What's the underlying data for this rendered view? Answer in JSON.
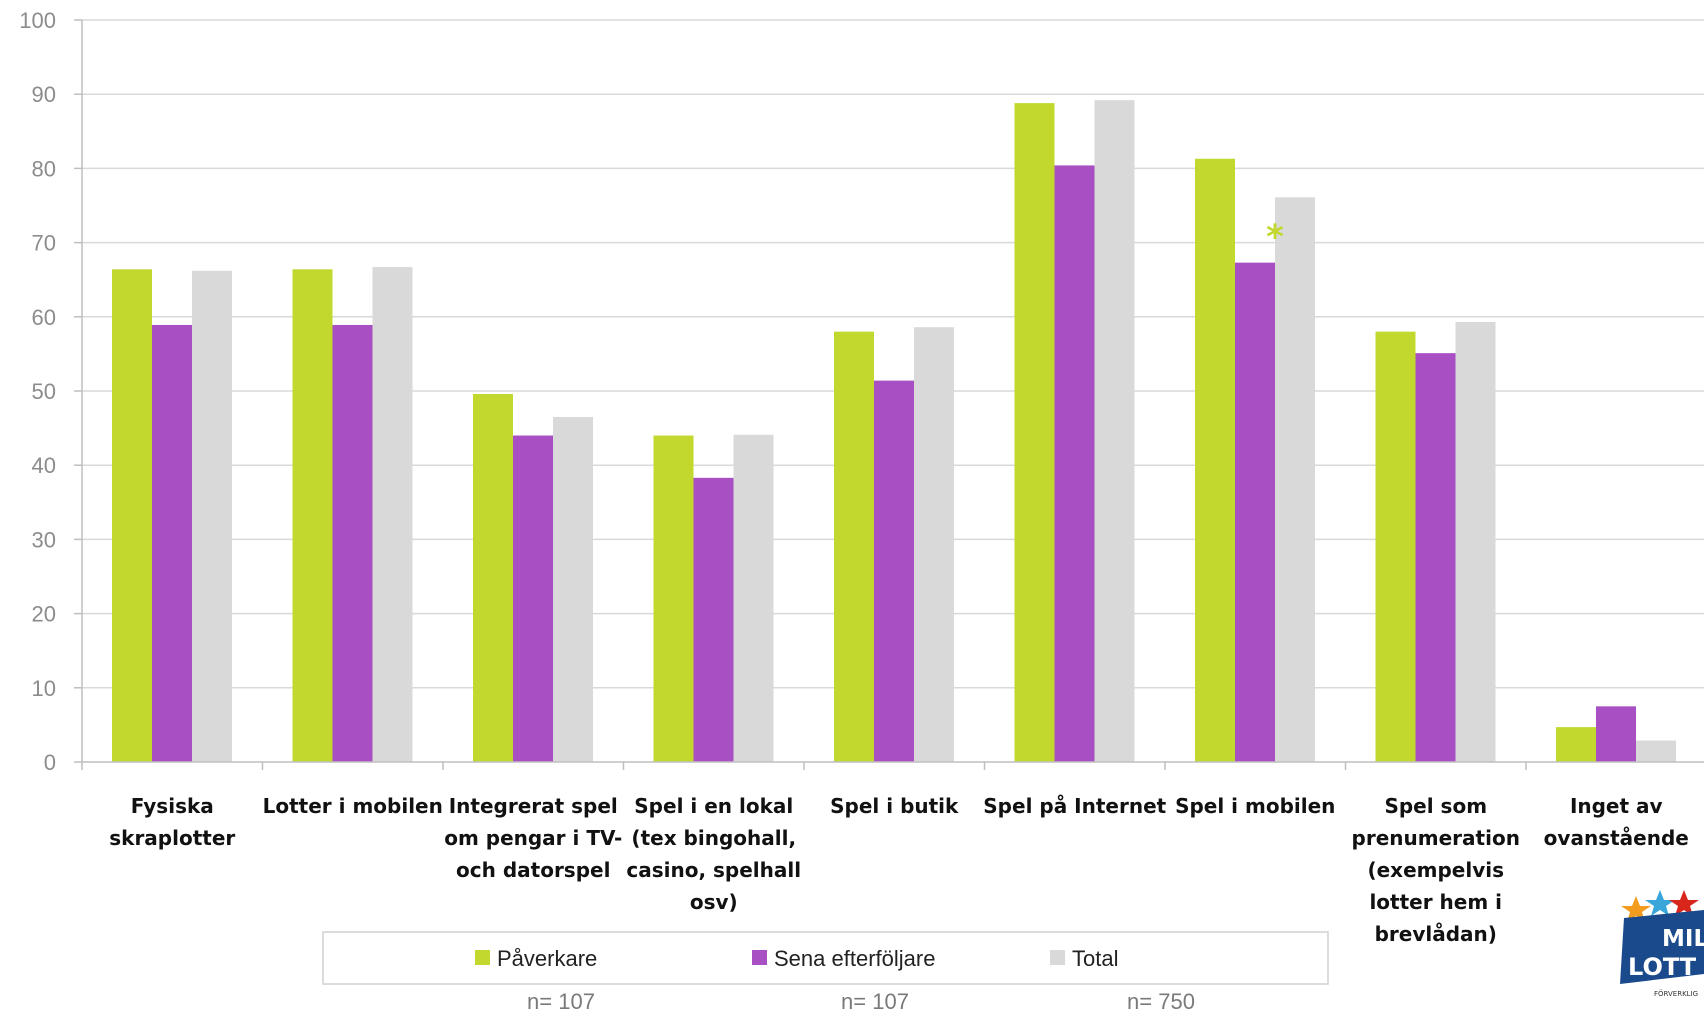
{
  "chart_data": {
    "type": "bar",
    "title": "",
    "xlabel": "",
    "ylabel": "",
    "ylim": [
      0,
      100
    ],
    "yticks": [
      0,
      10,
      20,
      30,
      40,
      50,
      60,
      70,
      80,
      90,
      100
    ],
    "grid": true,
    "legend_position": "bottom",
    "categories": [
      "Fysiska skraplotter",
      "Lotter i mobilen",
      "Integrerat spel om pengar i TV- och datorspel",
      "Spel i en lokal (tex bingohall, casino, spelhall osv)",
      "Spel i butik",
      "Spel på Internet",
      "Spel i mobilen",
      "Spel som prenumeration (exempelvis lotter hem i brevlådan)",
      "Inget av ovanstående"
    ],
    "category_lines": [
      [
        "Fysiska",
        "skraplotter"
      ],
      [
        "Lotter i mobilen"
      ],
      [
        "Integrerat spel",
        "om pengar i TV-",
        "och datorspel"
      ],
      [
        "Spel i en lokal",
        "(tex bingohall,",
        "casino, spelhall",
        "osv)"
      ],
      [
        "Spel i butik"
      ],
      [
        "Spel på Internet"
      ],
      [
        "Spel i mobilen"
      ],
      [
        "Spel som",
        "prenumeration",
        "(exempelvis",
        "lotter hem i",
        "brevlådan)"
      ],
      [
        "Inget av",
        "ovanstående"
      ]
    ],
    "series": [
      {
        "name": "Påverkare",
        "color": "#c2d82e",
        "n_label": "n= 107",
        "values": [
          66.4,
          66.4,
          49.6,
          44.0,
          58.0,
          88.8,
          81.3,
          58.0,
          4.7
        ]
      },
      {
        "name": "Sena efterföljare",
        "color": "#a94fc4",
        "n_label": "n= 107",
        "values": [
          58.9,
          58.9,
          44.0,
          38.3,
          51.4,
          80.4,
          67.3,
          55.1,
          7.5
        ]
      },
      {
        "name": "Total",
        "color": "#d9d9d9",
        "n_label": "n= 750",
        "values": [
          66.2,
          66.7,
          46.5,
          44.1,
          58.6,
          89.2,
          76.1,
          59.3,
          2.9
        ]
      }
    ],
    "annotations": [
      {
        "text": "*",
        "category_index": 6,
        "series_index": 1,
        "y": 71.5,
        "color": "#c2d82e"
      }
    ]
  },
  "logo": {
    "word1": "MIL",
    "word2": "LOTT",
    "tagline": "FÖRVERKLIG"
  }
}
